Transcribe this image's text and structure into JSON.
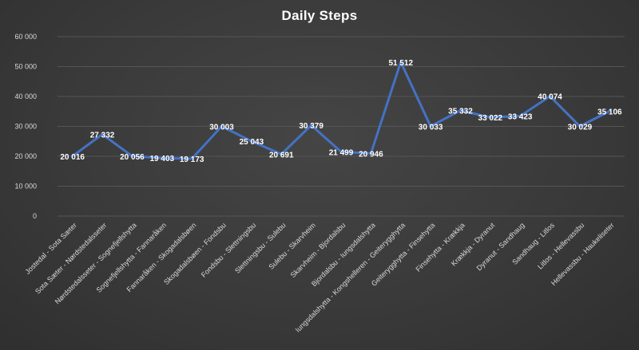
{
  "chart_data": {
    "type": "line",
    "title": "Daily Steps",
    "xlabel": "",
    "ylabel": "",
    "ylim": [
      0,
      60000
    ],
    "yticks": [
      0,
      10000,
      20000,
      30000,
      40000,
      50000,
      60000
    ],
    "ytick_labels": [
      "0",
      "10 000",
      "20 000",
      "30 000",
      "40 000",
      "50 000",
      "60 000"
    ],
    "grid": true,
    "line_color": "#4472C4",
    "categories": [
      "Jostedal - Sota Sæter",
      "Sota Sæter - Nørdstedalsseter",
      "Nørdstedalsseter - Sognefjellshytta",
      "Sognefjellshytta - Fannaråken",
      "Fannaråken - Skogadalsbøen",
      "Skogadalsbøen - Fondsbu",
      "Fondsbu - Slettningsbu",
      "Slettningsbu - Sulebu",
      "Sulebu - Skarvheim",
      "Skarvheim - Bjordalsbu",
      "Bjordalsbu - Iungsdalshytta",
      "Iungsdalshytta - Kongshelleren - Geiterygghytta",
      "Geiterygghytta - Finsehytta",
      "Finsehytta - Krækkja",
      "Krækkja - Dyranut",
      "Dyranut - Sandhaug",
      "Sandhaug - Litlos",
      "Litlos - Hellevassbu",
      "Hellevassbu - Haukeliseter"
    ],
    "values": [
      20016,
      27332,
      20056,
      19403,
      19173,
      30003,
      25043,
      20691,
      30379,
      21499,
      20946,
      51512,
      30033,
      35332,
      33022,
      33423,
      40074,
      30029,
      35106
    ],
    "value_labels": [
      "20 016",
      "27 332",
      "20 056",
      "19 403",
      "19 173",
      "30 003",
      "25 043",
      "20 691",
      "30 379",
      "21 499",
      "20 946",
      "51 512",
      "30 033",
      "35 332",
      "33 022",
      "33 423",
      "40 074",
      "30 029",
      "35 106"
    ]
  }
}
